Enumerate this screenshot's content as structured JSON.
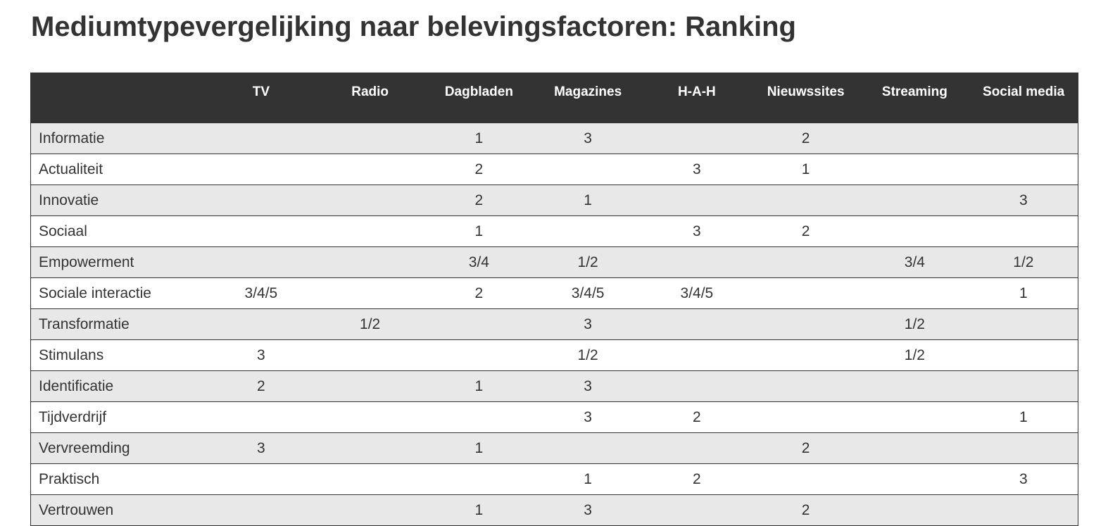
{
  "title": "Mediumtypevergelijking naar belevingsfactoren: Ranking",
  "table": {
    "columns": [
      "",
      "TV",
      "Radio",
      "Dagbladen",
      "Magazines",
      "H-A-H",
      "Nieuwssites",
      "Streaming",
      "Social media"
    ],
    "rows": [
      {
        "label": "Informatie",
        "values": [
          "",
          "",
          "1",
          "3",
          "",
          "2",
          "",
          ""
        ]
      },
      {
        "label": "Actualiteit",
        "values": [
          "",
          "",
          "2",
          "",
          "3",
          "1",
          "",
          ""
        ]
      },
      {
        "label": "Innovatie",
        "values": [
          "",
          "",
          "2",
          "1",
          "",
          "",
          "",
          "3"
        ]
      },
      {
        "label": "Sociaal",
        "values": [
          "",
          "",
          "1",
          "",
          "3",
          "2",
          "",
          ""
        ]
      },
      {
        "label": "Empowerment",
        "values": [
          "",
          "",
          "3/4",
          "1/2",
          "",
          "",
          "3/4",
          "1/2"
        ]
      },
      {
        "label": "Sociale interactie",
        "values": [
          "3/4/5",
          "",
          "2",
          "3/4/5",
          "3/4/5",
          "",
          "",
          "1"
        ]
      },
      {
        "label": "Transformatie",
        "values": [
          "",
          "1/2",
          "",
          "3",
          "",
          "",
          "1/2",
          ""
        ]
      },
      {
        "label": "Stimulans",
        "values": [
          "3",
          "",
          "",
          "1/2",
          "",
          "",
          "1/2",
          ""
        ]
      },
      {
        "label": "Identificatie",
        "values": [
          "2",
          "",
          "1",
          "3",
          "",
          "",
          "",
          ""
        ]
      },
      {
        "label": "Tijdverdrijf",
        "values": [
          "",
          "",
          "",
          "3",
          "2",
          "",
          "",
          "1"
        ]
      },
      {
        "label": "Vervreemding",
        "values": [
          "3",
          "",
          "1",
          "",
          "",
          "2",
          "",
          ""
        ]
      },
      {
        "label": "Praktisch",
        "values": [
          "",
          "",
          "",
          "1",
          "2",
          "",
          "",
          "3"
        ]
      },
      {
        "label": "Vertrouwen",
        "values": [
          "",
          "",
          "1",
          "3",
          "",
          "2",
          "",
          ""
        ]
      }
    ]
  },
  "colors": {
    "header_bg": "#333333",
    "header_text": "#ffffff",
    "row_shaded": "#e8e8e8",
    "row_plain": "#ffffff",
    "text": "#333333"
  }
}
